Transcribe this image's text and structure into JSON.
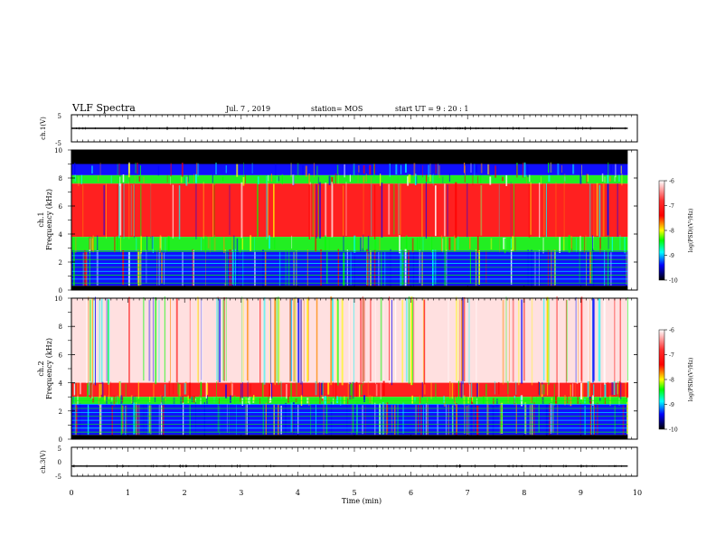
{
  "header": {
    "title": "VLF Spectra",
    "date": "Jul. 7 , 2019",
    "station": "station= MOS",
    "start": "start UT =  9 : 20 : 1"
  },
  "colors": {
    "colormap": [
      "#ffffff",
      "#ff0000",
      "#ffff00",
      "#00ff00",
      "#00ffff",
      "#0000ff",
      "#000000"
    ]
  },
  "chart_data": [
    {
      "type": "line",
      "panel": "ch1-waveform",
      "ylabel": "ch.1(V)",
      "ylim": [
        -5,
        5
      ],
      "yticks": [
        "5",
        "-5"
      ],
      "series": [
        {
          "x": [
            0,
            9.83
          ],
          "y": [
            0,
            0
          ]
        }
      ]
    },
    {
      "type": "heatmap",
      "panel": "ch1-spectrogram",
      "ylabel_top": "ch.1",
      "ylabel": "Frequency (kHz)",
      "ylim": [
        0,
        10
      ],
      "yticks": [
        "0",
        "2",
        "4",
        "6",
        "8",
        "10"
      ],
      "time_range_min": [
        0,
        9.83
      ],
      "bands": [
        {
          "f_lo": 9.0,
          "f_hi": 10.0,
          "level": "none"
        },
        {
          "f_lo": 8.2,
          "f_hi": 9.0,
          "level": "-9"
        },
        {
          "f_lo": 7.6,
          "f_hi": 8.2,
          "level": "-8"
        },
        {
          "f_lo": 3.8,
          "f_hi": 7.6,
          "level": "-7"
        },
        {
          "f_lo": 2.8,
          "f_hi": 3.8,
          "level": "-8"
        },
        {
          "f_lo": 0.3,
          "f_hi": 2.8,
          "level": "-9"
        }
      ],
      "colorbar": {
        "label": "log(PSD)(V²/Hz)",
        "ticks": [
          "-6",
          "-7",
          "-8",
          "-9",
          "-10"
        ],
        "range": [
          -10,
          -6
        ]
      }
    },
    {
      "type": "heatmap",
      "panel": "ch2-spectrogram",
      "ylabel_top": "ch.2",
      "ylabel": "Frequency (kHz)",
      "ylim": [
        0,
        10
      ],
      "yticks": [
        "0",
        "2",
        "4",
        "6",
        "8",
        "10"
      ],
      "time_range_min": [
        0,
        9.83
      ],
      "bands": [
        {
          "f_lo": 4.0,
          "f_hi": 10.0,
          "level": "-6"
        },
        {
          "f_lo": 3.0,
          "f_hi": 4.0,
          "level": "-7"
        },
        {
          "f_lo": 2.5,
          "f_hi": 3.0,
          "level": "-8"
        },
        {
          "f_lo": 0.3,
          "f_hi": 2.5,
          "level": "-9"
        }
      ],
      "colorbar": {
        "label": "log(PSD)(V²/Hz)",
        "ticks": [
          "-6",
          "-7",
          "-8",
          "-9",
          "-10"
        ],
        "range": [
          -10,
          -6
        ]
      }
    },
    {
      "type": "line",
      "panel": "ch3-waveform",
      "ylabel": "ch.3(V)",
      "ylim": [
        -5,
        5
      ],
      "yticks": [
        "5",
        "0",
        "-5"
      ],
      "series": [
        {
          "x": [
            0,
            9.83
          ],
          "y": [
            -1.5,
            -1.5
          ]
        }
      ]
    }
  ],
  "xaxis": {
    "label": "Time (min)",
    "xlim": [
      0,
      10
    ],
    "ticks": [
      "0",
      "1",
      "2",
      "3",
      "4",
      "5",
      "6",
      "7",
      "8",
      "9",
      "10"
    ]
  }
}
